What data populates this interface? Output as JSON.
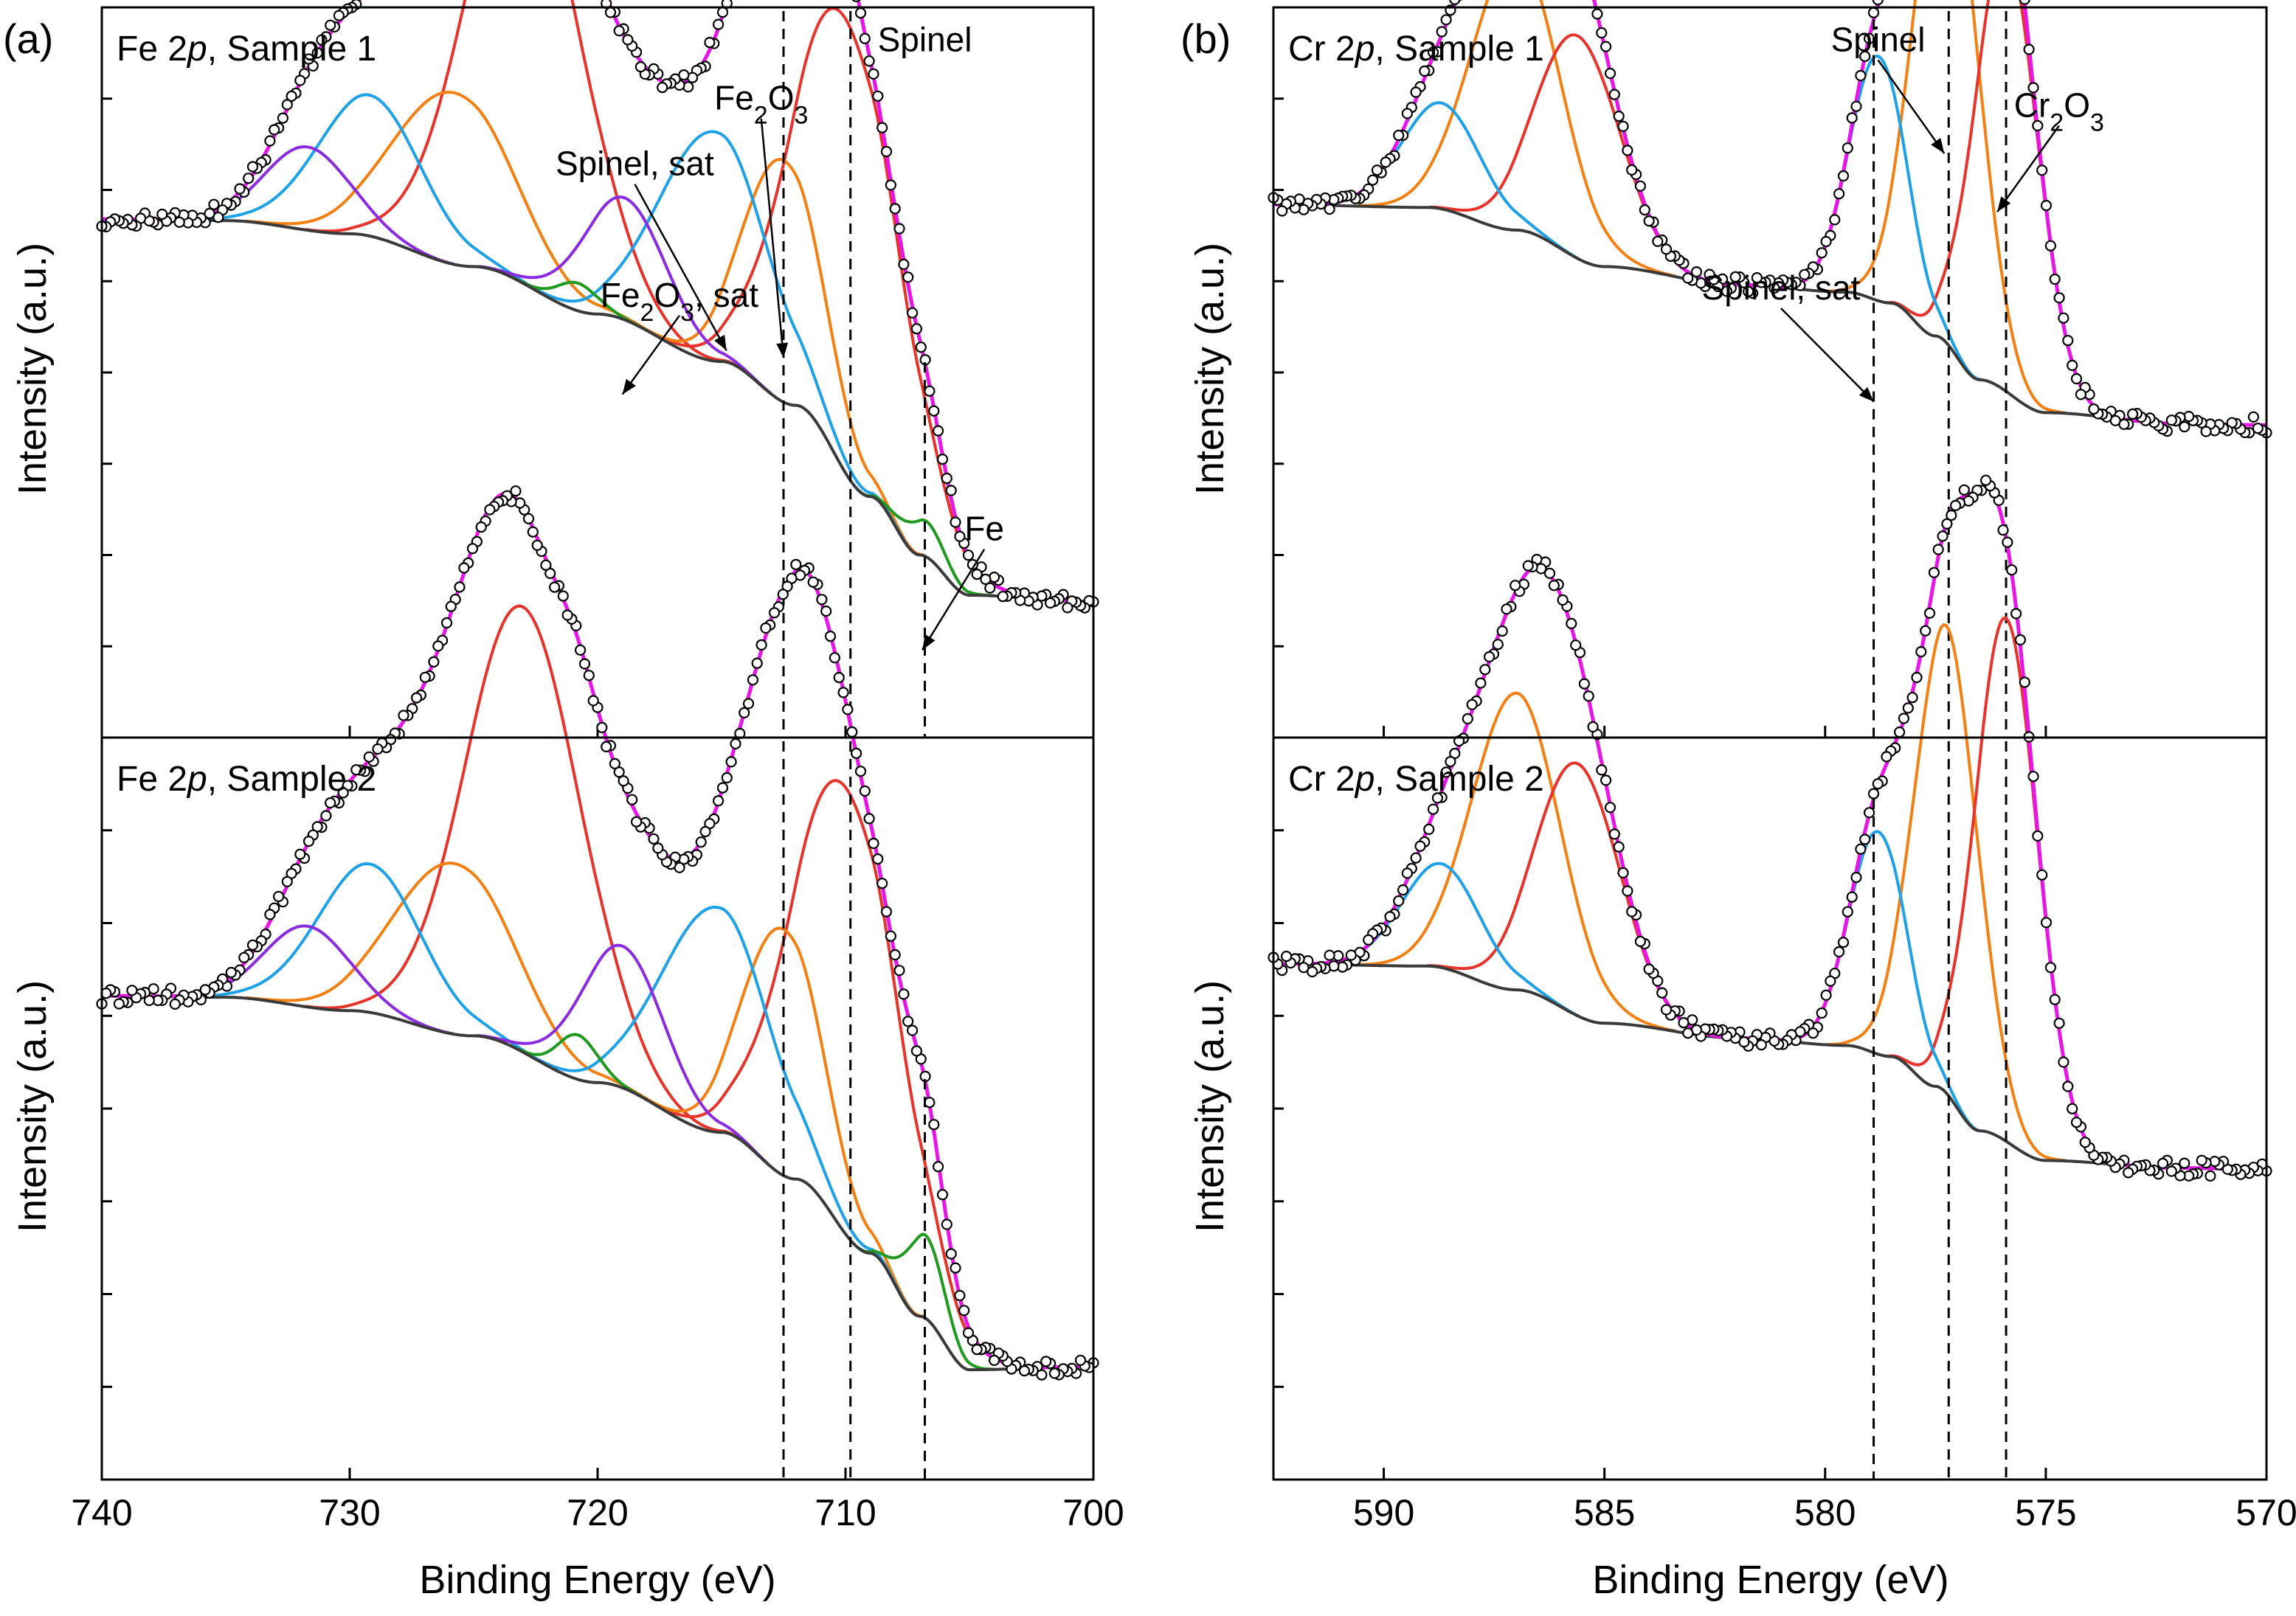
{
  "figure": {
    "panel_labels": [
      "(a)",
      "(b)"
    ],
    "frame_color": "#000000",
    "colors": {
      "fit_envelope": "#e815e8",
      "background": "#3a3a3a",
      "data_marker": "#000000",
      "red": "#e8332b",
      "orange": "#f47f13",
      "blue": "#1da1e8",
      "purple": "#8a2be2",
      "green": "#1e9a1e"
    }
  },
  "chart_data": [
    {
      "type": "line",
      "id": "fe",
      "panel_letter": "(a)",
      "xlabel": "Binding Energy (eV)",
      "ylabel": "Intensity (a.u.)",
      "xlim": [
        740,
        700
      ],
      "x_ticks": [
        740,
        730,
        720,
        710,
        700
      ],
      "reference_lines": [
        712.5,
        709.8,
        706.8
      ],
      "subplots": [
        {
          "title": "Fe 2p, Sample 1",
          "title_element": "Fe",
          "title_orbital": "p",
          "title_sample": "Sample 1",
          "ylim": [
            0,
            100
          ],
          "background": [
            [
              740,
              71.0
            ],
            [
              735,
              70.8
            ],
            [
              730,
              69.0
            ],
            [
              725,
              64.5
            ],
            [
              720,
              58.0
            ],
            [
              715,
              51.5
            ],
            [
              712,
              45.5
            ],
            [
              709,
              33.0
            ],
            [
              707,
              25.0
            ],
            [
              705,
              19.5
            ],
            [
              700,
              18.6
            ]
          ],
          "components": [
            {
              "color": "red",
              "center": 723,
              "height": 60.2,
              "width": 2.35
            },
            {
              "color": "red",
              "center": 710.0,
              "height": 62.2,
              "width": 2.2
            },
            {
              "color": "orange",
              "center": 725.8,
              "height": 23.5,
              "width": 2.4
            },
            {
              "color": "orange",
              "center": 712.5,
              "height": 33.1,
              "width": 1.6
            },
            {
              "color": "blue",
              "center": 729.2,
              "height": 19.3,
              "width": 2.1
            },
            {
              "color": "blue",
              "center": 715.3,
              "height": 31.4,
              "width": 2.2
            },
            {
              "color": "purple",
              "center": 731.7,
              "height": 11.4,
              "width": 1.7
            },
            {
              "color": "purple",
              "center": 718.9,
              "height": 16.7,
              "width": 1.7
            },
            {
              "color": "green",
              "center": 720.8,
              "height": 3.8,
              "width": 0.8
            },
            {
              "color": "green",
              "center": 706.8,
              "height": 4.9,
              "width": 0.8
            }
          ],
          "annotations": [
            {
              "text": "Spinel",
              "text_x": 706.8,
              "text_y": 94,
              "target": null
            },
            {
              "text": "Fe",
              "sub": "2",
              "text2": "O",
              "sub2": "3",
              "text_x": 713.4,
              "text_y": 86,
              "target": [
                712.5,
                52
              ]
            },
            {
              "text": "Spinel, sat",
              "text_x": 718.5,
              "text_y": 77,
              "target": [
                714.8,
                53
              ]
            },
            {
              "text": "Fe",
              "sub": "2",
              "text2": "O",
              "sub2": "3",
              "text3": ", sat",
              "text_x": 716.7,
              "text_y": 59,
              "target": [
                719.0,
                47
              ]
            },
            {
              "text": "Fe",
              "text_x": 704.4,
              "text_y": 27,
              "target": [
                706.9,
                12
              ]
            }
          ]
        },
        {
          "title": "Fe 2p, Sample 2",
          "title_element": "Fe",
          "title_orbital": "p",
          "title_sample": "Sample 2",
          "ylim": [
            0,
            100
          ],
          "background": [
            [
              740,
              65.2
            ],
            [
              735,
              65.0
            ],
            [
              730,
              63.2
            ],
            [
              725,
              59.8
            ],
            [
              720,
              53.5
            ],
            [
              715,
              46.8
            ],
            [
              712,
              40.5
            ],
            [
              709,
              30.5
            ],
            [
              707,
              22.0
            ],
            [
              705,
              14.8
            ],
            [
              700,
              15.2
            ]
          ],
          "components": [
            {
              "color": "red",
              "center": 723,
              "height": 60.0,
              "width": 2.35
            },
            {
              "color": "red",
              "center": 710.0,
              "height": 60.2,
              "width": 2.2
            },
            {
              "color": "orange",
              "center": 725.8,
              "height": 23.0,
              "width": 2.4
            },
            {
              "color": "orange",
              "center": 712.5,
              "height": 33.2,
              "width": 1.6
            },
            {
              "color": "blue",
              "center": 729.2,
              "height": 20.0,
              "width": 2.1
            },
            {
              "color": "blue",
              "center": 715.2,
              "height": 30.3,
              "width": 2.2
            },
            {
              "color": "purple",
              "center": 731.7,
              "height": 10.9,
              "width": 1.7
            },
            {
              "color": "purple",
              "center": 719.0,
              "height": 19.1,
              "width": 1.7
            },
            {
              "color": "green",
              "center": 720.8,
              "height": 6.0,
              "width": 0.8
            },
            {
              "color": "green",
              "center": 706.8,
              "height": 11.2,
              "width": 0.8
            }
          ],
          "annotations": []
        }
      ]
    },
    {
      "type": "line",
      "id": "cr",
      "panel_letter": "(b)",
      "xlabel": "Binding Energy (eV)",
      "ylabel": "Intensity (a.u.)",
      "xlim": [
        592.5,
        570
      ],
      "x_ticks": [
        590,
        585,
        580,
        575,
        570
      ],
      "reference_lines": [
        578.9,
        577.2,
        575.9
      ],
      "subplots": [
        {
          "title": "Cr 2p, Sample 1",
          "title_element": "Cr",
          "title_orbital": "p",
          "title_sample": "Sample 1",
          "ylim": [
            0,
            100
          ],
          "background": [
            [
              592.5,
              73.0
            ],
            [
              589,
              72.6
            ],
            [
              587,
              69.5
            ],
            [
              585,
              64.5
            ],
            [
              582,
              62.0
            ],
            [
              579.5,
              61.0
            ],
            [
              578.5,
              59.5
            ],
            [
              577.5,
              55.0
            ],
            [
              576.5,
              49.0
            ],
            [
              575,
              44.5
            ],
            [
              572,
              43.0
            ],
            [
              570,
              42.8
            ]
          ],
          "components": [
            {
              "color": "orange",
              "center": 587.0,
              "height": 38.0,
              "width": 1.0
            },
            {
              "color": "orange",
              "center": 577.25,
              "height": 71.5,
              "width": 0.72
            },
            {
              "color": "red",
              "center": 585.6,
              "height": 30.5,
              "width": 0.95
            },
            {
              "color": "red",
              "center": 575.9,
              "height": 61.0,
              "width": 0.72
            },
            {
              "color": "blue",
              "center": 588.7,
              "height": 14.5,
              "width": 0.9
            },
            {
              "color": "blue",
              "center": 578.8,
              "height": 33.5,
              "width": 0.65
            }
          ],
          "annotations": [
            {
              "text": "Spinel",
              "text_x": 578.8,
              "text_y": 94,
              "target": [
                577.3,
                80
              ]
            },
            {
              "text": "Cr",
              "sub": "2",
              "text2": "O",
              "sub2": "3",
              "text_x": 574.7,
              "text_y": 85,
              "target": [
                576.1,
                72
              ]
            },
            {
              "text": "Spinel, sat",
              "text_x": 581.0,
              "text_y": 60,
              "target": [
                578.9,
                46
              ]
            }
          ]
        },
        {
          "title": "Cr 2p, Sample 2",
          "title_element": "Cr",
          "title_orbital": "p",
          "title_sample": "Sample 2",
          "ylim": [
            0,
            100
          ],
          "background": [
            [
              592.5,
              69.5
            ],
            [
              589,
              69.2
            ],
            [
              587,
              66.0
            ],
            [
              585,
              61.5
            ],
            [
              582,
              59.5
            ],
            [
              579.5,
              58.5
            ],
            [
              578.5,
              57.0
            ],
            [
              577.5,
              53.0
            ],
            [
              576.5,
              47.0
            ],
            [
              575,
              43.0
            ],
            [
              572,
              42.0
            ],
            [
              570,
              41.8
            ]
          ],
          "components": [
            {
              "color": "orange",
              "center": 587.0,
              "height": 40.0,
              "width": 1.0
            },
            {
              "color": "orange",
              "center": 577.25,
              "height": 63.0,
              "width": 0.72
            },
            {
              "color": "red",
              "center": 585.6,
              "height": 34.0,
              "width": 0.95
            },
            {
              "color": "red",
              "center": 575.9,
              "height": 70.5,
              "width": 0.72
            },
            {
              "color": "blue",
              "center": 588.7,
              "height": 14.0,
              "width": 0.9
            },
            {
              "color": "blue",
              "center": 578.8,
              "height": 30.0,
              "width": 0.65
            }
          ],
          "annotations": []
        }
      ]
    }
  ]
}
